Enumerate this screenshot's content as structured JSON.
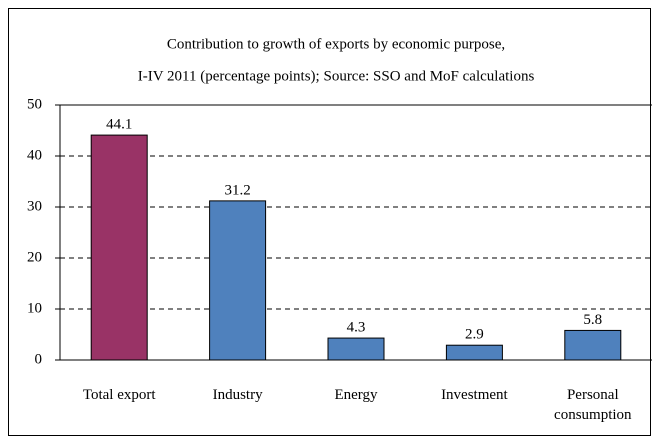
{
  "chart_data": {
    "type": "bar",
    "title": "Contribution to growth of exports by economic purpose,",
    "subtitle": "I-IV 2011 (percentage points); Source: SSO and MoF calculations",
    "categories": [
      "Total export",
      "Industry",
      "Energy",
      "Investment",
      "Personal consumption"
    ],
    "values": [
      44.1,
      31.2,
      4.3,
      2.9,
      5.8
    ],
    "colors": [
      "#993366",
      "#4f81bd",
      "#4f81bd",
      "#4f81bd",
      "#4f81bd"
    ],
    "ylim": [
      0,
      50
    ],
    "yticks": [
      0,
      10,
      20,
      30,
      40,
      50
    ],
    "grid": true
  }
}
